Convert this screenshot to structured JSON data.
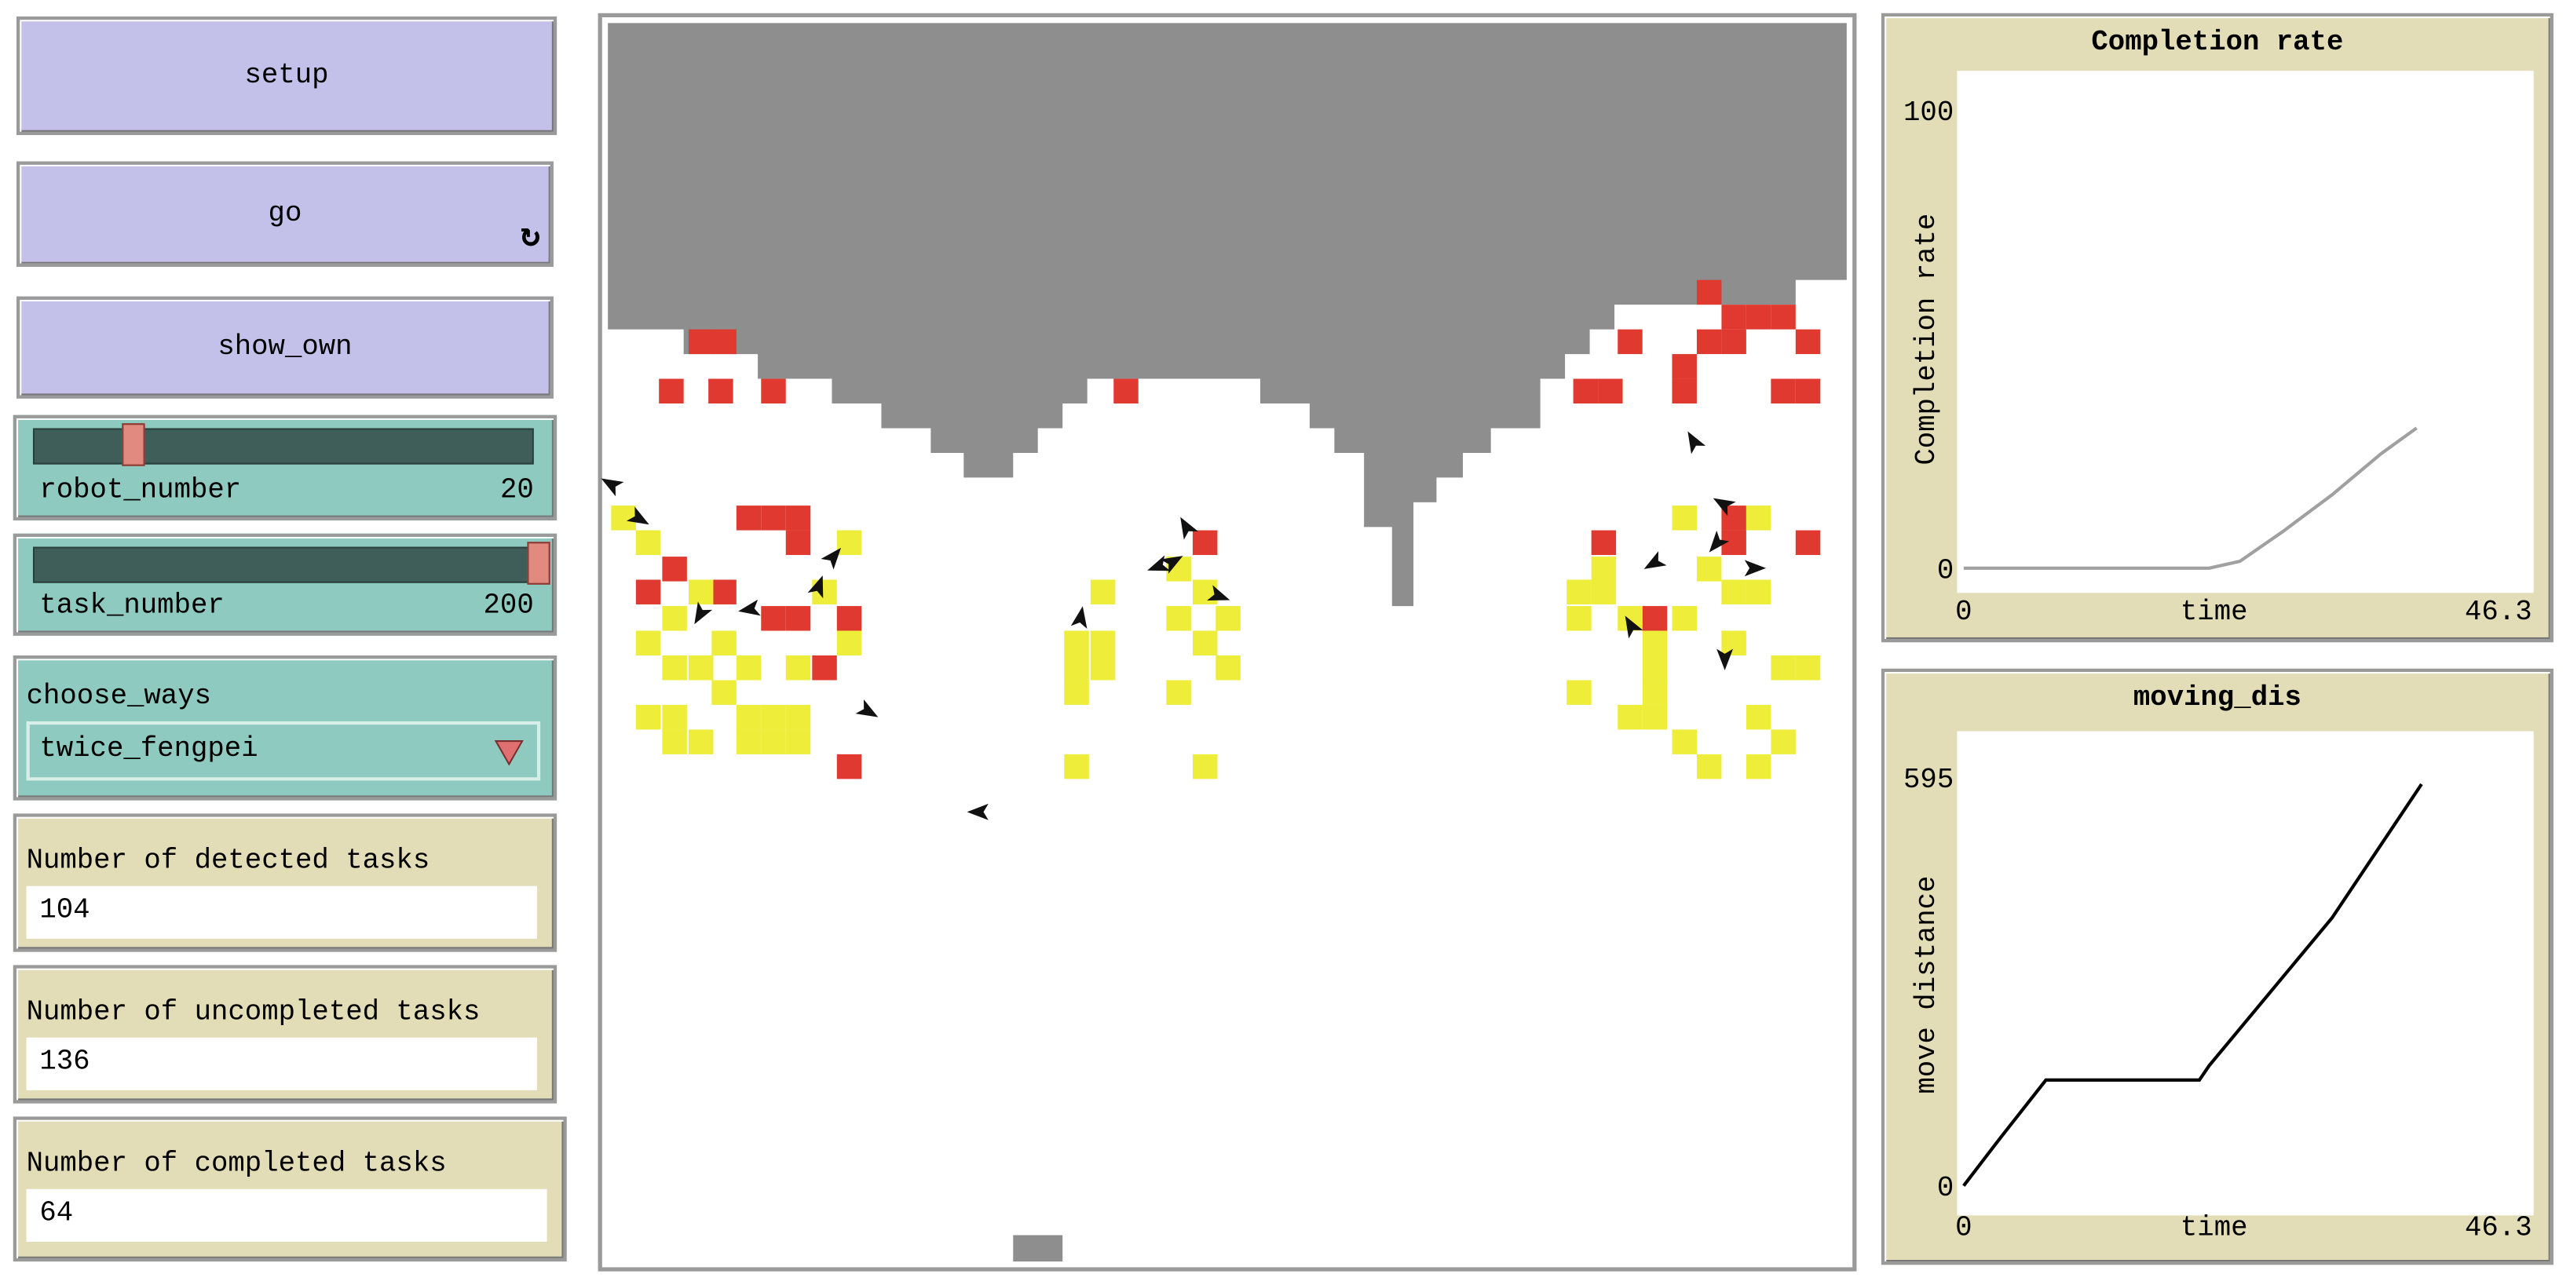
{
  "buttons": [
    {
      "label": "setup"
    },
    {
      "label": "go"
    },
    {
      "label": "show_own"
    }
  ],
  "sliders": [
    {
      "name": "robot_number",
      "value": 20
    },
    {
      "name": "task_number",
      "value": 200
    }
  ],
  "chooser": {
    "name": "choose_ways",
    "value": "twice_fengpei"
  },
  "monitors": [
    {
      "label": "Number of detected tasks",
      "value": 104
    },
    {
      "label": "Number of uncompleted tasks",
      "value": 136
    },
    {
      "label": "Number of completed tasks",
      "value": 64
    }
  ],
  "plots": [
    {
      "type": "line",
      "title": "Completion rate",
      "x_label": "time",
      "y_label": "Completion rate",
      "xlim": [
        0,
        46.3
      ],
      "ylim": [
        0,
        100
      ],
      "xticks": [
        0,
        46.3
      ],
      "yticks": [
        0,
        100
      ],
      "color": "#a0a0a0",
      "x": [
        0,
        20,
        22.5,
        26,
        30,
        34,
        36.9
      ],
      "values": [
        0,
        0,
        1.5,
        8,
        16,
        25,
        30.6
      ]
    },
    {
      "type": "line",
      "title": "moving_dis",
      "x_label": "time",
      "y_label": "move distance",
      "xlim": [
        0,
        46.3
      ],
      "ylim": [
        0,
        595
      ],
      "xticks": [
        0,
        46.3
      ],
      "yticks": [
        0,
        595
      ],
      "color": "#000000",
      "x": [
        0,
        3,
        6.7,
        19.2,
        20,
        30,
        37.3
      ],
      "values": [
        0,
        70,
        154,
        154,
        175,
        390,
        585
      ]
    }
  ]
}
